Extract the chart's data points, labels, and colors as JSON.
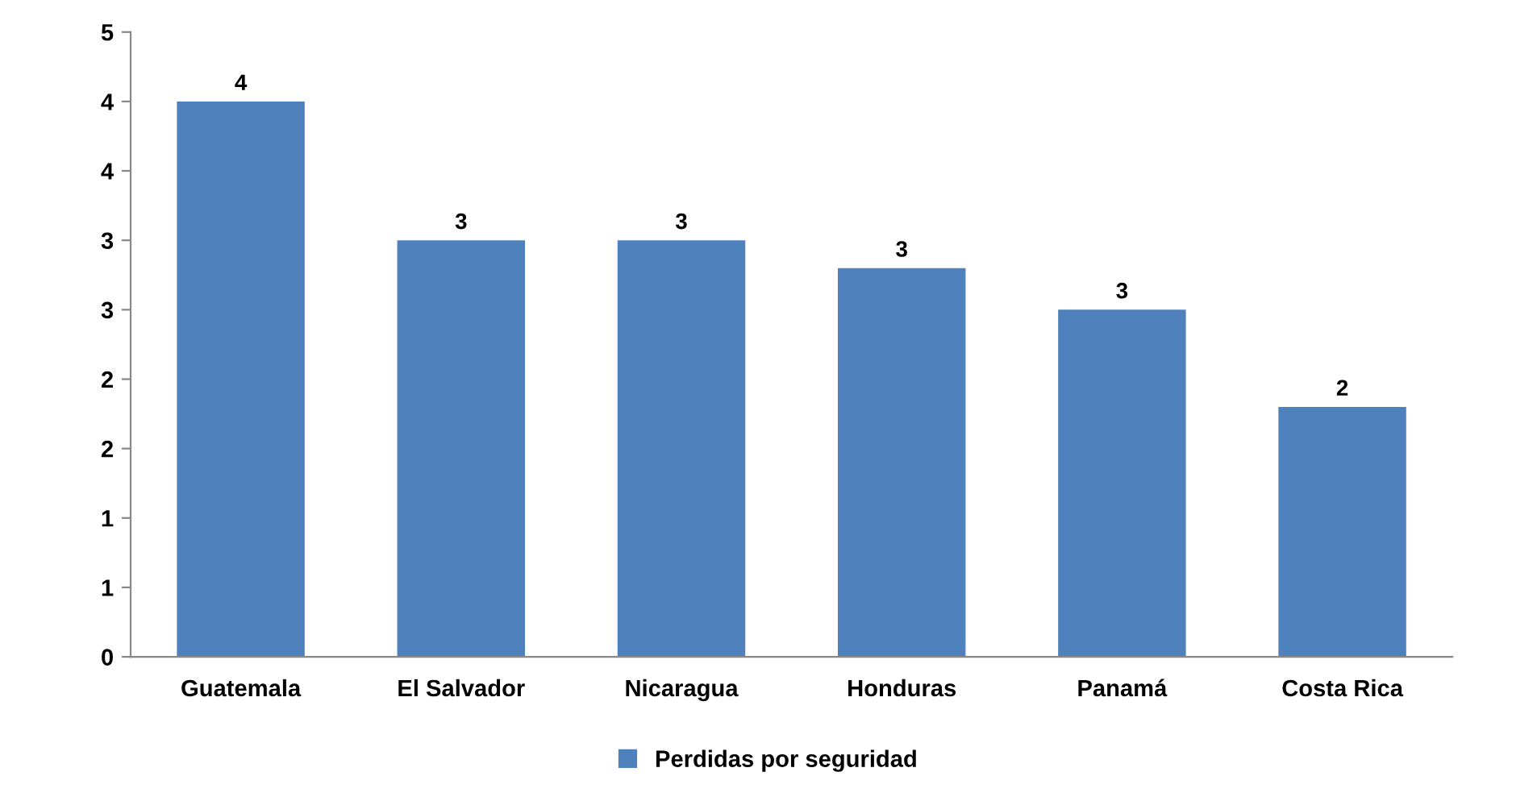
{
  "chart_data": {
    "type": "bar",
    "categories": [
      "Guatemala",
      "El Salvador",
      "Nicaragua",
      "Honduras",
      "Panamá",
      "Costa Rica"
    ],
    "series": [
      {
        "name": "Perdidas por seguridad",
        "color": "#4f81bd",
        "values": [
          4.0,
          3.0,
          3.0,
          2.8,
          2.5,
          1.8
        ],
        "value_labels": [
          "4",
          "3",
          "3",
          "3",
          "3",
          "2"
        ]
      }
    ],
    "ylim": [
      0,
      4.5
    ],
    "yticks": [
      {
        "value": 0,
        "label": "0"
      },
      {
        "value": 0.5,
        "label": "1"
      },
      {
        "value": 1,
        "label": "1"
      },
      {
        "value": 1.5,
        "label": "2"
      },
      {
        "value": 2,
        "label": "2"
      },
      {
        "value": 2.5,
        "label": "3"
      },
      {
        "value": 3,
        "label": "3"
      },
      {
        "value": 3.5,
        "label": "4"
      },
      {
        "value": 4,
        "label": "4"
      },
      {
        "value": 4.5,
        "label": "5"
      }
    ],
    "grid": false,
    "legend": "bottom"
  }
}
